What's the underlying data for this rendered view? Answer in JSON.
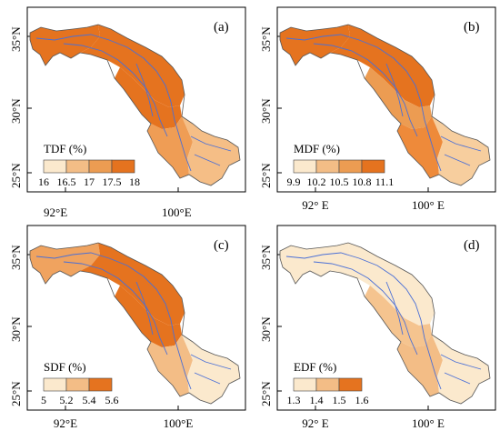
{
  "panels": [
    {
      "id": "a",
      "label": "(a)",
      "legend_title": "TDF  (%)",
      "legend_ticks": [
        "16",
        "16.5",
        "17",
        "17.5",
        "18"
      ],
      "legend_colors": [
        "#fbe9cd",
        "#f3bd86",
        "#ec9c52",
        "#e5731f"
      ],
      "region_colors": {
        "west": "#e5731f",
        "north": "#e5731f",
        "middle": "#e5731f",
        "lower_mid": "#ef9d55",
        "southeast": "#f5be86"
      },
      "y_labels": [
        "35°N",
        "30°N",
        "25°N"
      ],
      "x_labels": []
    },
    {
      "id": "b",
      "label": "(b)",
      "legend_title": "MDF  (%)",
      "legend_ticks": [
        "9.9",
        "10.2",
        "10.5",
        "10.8",
        "11.1"
      ],
      "legend_colors": [
        "#fbe9cd",
        "#f3bd86",
        "#ec9c52",
        "#e5731f"
      ],
      "region_colors": {
        "west": "#e5731f",
        "north": "#e5731f",
        "middle": "#ec9c52",
        "lower_mid": "#ee8a3a",
        "southeast": "#f7ce9e"
      },
      "y_labels": [
        "35°N",
        "30°N",
        "25°N"
      ],
      "x_labels": [
        "92° E",
        "100° E"
      ]
    },
    {
      "id": "c",
      "label": "(c)",
      "legend_title": "SDF  (%)",
      "legend_ticks": [
        "5",
        "5.2",
        "5.4",
        "5.6"
      ],
      "legend_colors": [
        "#fbe9cd",
        "#f3bd86",
        "#e5731f"
      ],
      "region_colors": {
        "west": "#f0a35f",
        "north": "#e5731f",
        "middle": "#e5731f",
        "lower_mid": "#f3bd86",
        "southeast": "#fbe9cd"
      },
      "y_labels": [
        "35°N",
        "30°N",
        "25°N"
      ],
      "x_labels": [
        "92°E",
        "100°E"
      ]
    },
    {
      "id": "d",
      "label": "(d)",
      "legend_title": "EDF  (%)",
      "legend_ticks": [
        "1.3",
        "1.4",
        "1.5",
        "1.6"
      ],
      "legend_colors": [
        "#fbe9cd",
        "#f3bd86",
        "#e5731f"
      ],
      "region_colors": {
        "west": "#fbe9cd",
        "north": "#fbe9cd",
        "middle": "#f5c48f",
        "lower_mid": "#f3bd86",
        "southeast": "#fbe9cd"
      },
      "y_labels": [
        "35°N",
        "30°N",
        "25°N"
      ],
      "x_labels": [
        "92° E",
        "100° E"
      ]
    }
  ],
  "top_x_labels": [
    "92°E",
    "100°E"
  ]
}
